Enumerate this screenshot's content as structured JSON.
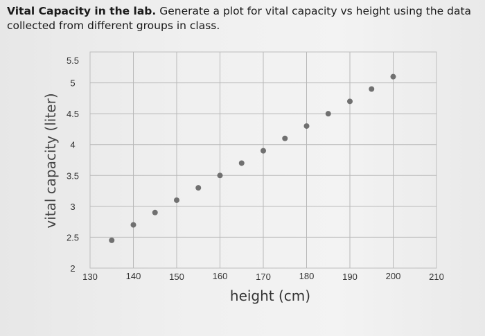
{
  "header": {
    "bold": "Vital Capacity in the lab.",
    "text": " Generate a plot for vital capacity vs height using the data collected from different groups in class."
  },
  "chart_data": {
    "type": "scatter",
    "xlabel": "height (cm)",
    "ylabel": "vital capacity (liter)",
    "xlim": [
      130,
      210
    ],
    "ylim": [
      2,
      5.5
    ],
    "xticks": [
      "130",
      "140",
      "150",
      "160",
      "170",
      "180",
      "190",
      "200",
      "210"
    ],
    "yticks": [
      "5.5",
      "5",
      "4.5",
      "4",
      "3.5",
      "3",
      "2.5",
      "2"
    ],
    "grid": true,
    "points": [
      {
        "x": 135,
        "y": 2.45
      },
      {
        "x": 140,
        "y": 2.7
      },
      {
        "x": 145,
        "y": 2.9
      },
      {
        "x": 150,
        "y": 3.1
      },
      {
        "x": 155,
        "y": 3.3
      },
      {
        "x": 160,
        "y": 3.5
      },
      {
        "x": 165,
        "y": 3.7
      },
      {
        "x": 170,
        "y": 3.9
      },
      {
        "x": 175,
        "y": 4.1
      },
      {
        "x": 180,
        "y": 4.3
      },
      {
        "x": 185,
        "y": 4.5
      },
      {
        "x": 190,
        "y": 4.7
      },
      {
        "x": 195,
        "y": 4.9
      },
      {
        "x": 200,
        "y": 5.1
      }
    ],
    "point_color": "#707070"
  }
}
